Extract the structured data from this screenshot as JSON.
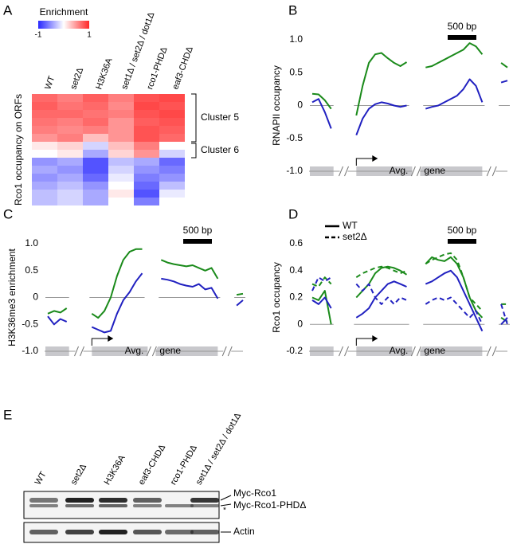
{
  "chart_data": [
    {
      "type": "heatmap",
      "panel": "A",
      "legend_title": "Enrichment",
      "colorbar_ticks": [
        -1,
        1
      ],
      "colorbar_colors": [
        "#2828ff",
        "#ffffff",
        "#ff2828"
      ],
      "ylabel": "Rco1 occupancy on ORFs",
      "columns": [
        "WT",
        "set2Δ",
        "H3K36A",
        "set1Δ / set2Δ / dot1Δ",
        "rco1-PHDΔ",
        "eaf3-CHDΔ"
      ],
      "values": [
        [
          0.7,
          0.6,
          0.75,
          0.6,
          0.8,
          0.85
        ],
        [
          0.75,
          0.65,
          0.7,
          0.55,
          0.85,
          0.8
        ],
        [
          0.7,
          0.7,
          0.65,
          0.6,
          0.8,
          0.85
        ],
        [
          0.65,
          0.6,
          0.7,
          0.5,
          0.75,
          0.8
        ],
        [
          0.6,
          0.55,
          0.6,
          0.5,
          0.8,
          0.75
        ],
        [
          0.5,
          0.6,
          0.3,
          0.5,
          0.8,
          0.7
        ],
        [
          0.1,
          0.2,
          -0.2,
          0.3,
          0.6,
          0.0
        ],
        [
          0.0,
          0.1,
          -0.4,
          0.2,
          0.5,
          -0.2
        ],
        [
          -0.5,
          -0.4,
          -0.8,
          -0.3,
          -0.4,
          -0.7
        ],
        [
          -0.4,
          -0.5,
          -0.8,
          -0.2,
          -0.5,
          -0.6
        ],
        [
          -0.5,
          -0.4,
          -0.7,
          -0.1,
          -0.6,
          -0.5
        ],
        [
          -0.4,
          -0.3,
          -0.5,
          0.0,
          -0.7,
          -0.3
        ],
        [
          -0.3,
          -0.2,
          -0.4,
          0.1,
          -0.8,
          -0.1
        ],
        [
          -0.3,
          -0.2,
          -0.4,
          0.0,
          -0.6,
          0.0
        ]
      ],
      "clusters": [
        {
          "name": "Cluster 5",
          "color": "#1a8a1a"
        },
        {
          "name": "Cluster 6",
          "color": "#2020c0"
        }
      ]
    },
    {
      "type": "line",
      "panel": "B",
      "ylabel": "RNAPII occupancy",
      "ylim": [
        -1,
        1
      ],
      "yticks": [
        {
          "value": 1,
          "label": "1.0"
        },
        0.5,
        0,
        -0.5,
        {
          "value": -1,
          "label": "-1.0"
        }
      ],
      "categories": [
        null,
        null,
        null,
        null,
        null,
        null,
        null,
        null,
        null,
        null,
        null,
        null,
        null,
        null,
        null,
        null,
        null,
        null,
        null,
        null,
        null,
        null,
        null,
        null,
        null,
        null,
        null,
        null,
        null,
        null,
        null,
        null
      ],
      "scale_bar": "500 bp",
      "gene_label": [
        "Avg.",
        "gene"
      ],
      "series": [
        {
          "color": "#1a8a1a",
          "values": [
            0.18,
            0.17,
            0.08,
            -0.05,
            null,
            null,
            null,
            -0.15,
            0.3,
            0.65,
            0.78,
            0.8,
            0.72,
            0.65,
            0.6,
            0.66,
            null,
            null,
            0.58,
            0.6,
            0.65,
            0.7,
            0.75,
            0.8,
            0.85,
            0.95,
            0.9,
            0.78,
            null,
            null,
            0.65,
            0.58
          ]
        },
        {
          "color": "#2020c0",
          "values": [
            0.05,
            0.1,
            -0.1,
            -0.35,
            null,
            null,
            null,
            -0.45,
            -0.2,
            -0.05,
            0.02,
            0.05,
            0.03,
            0.0,
            -0.02,
            0.0,
            null,
            null,
            -0.05,
            -0.02,
            0.0,
            0.05,
            0.1,
            0.15,
            0.25,
            0.4,
            0.3,
            0.05,
            null,
            null,
            0.35,
            0.38
          ]
        }
      ]
    },
    {
      "type": "line",
      "panel": "C",
      "ylabel": "H3K36me3 enrichment",
      "ylim": [
        -1,
        1
      ],
      "yticks": [
        {
          "value": 1,
          "label": "1.0"
        },
        0.5,
        0,
        -0.5,
        {
          "value": -1,
          "label": "-1.0"
        }
      ],
      "categories": [
        null,
        null,
        null,
        null,
        null,
        null,
        null,
        null,
        null,
        null,
        null,
        null,
        null,
        null,
        null,
        null,
        null,
        null,
        null,
        null,
        null,
        null,
        null,
        null,
        null,
        null,
        null,
        null,
        null,
        null,
        null,
        null
      ],
      "scale_bar": "500 bp",
      "gene_label": [
        "Avg.",
        "gene"
      ],
      "series": [
        {
          "color": "#1a8a1a",
          "values": [
            -0.3,
            -0.25,
            -0.28,
            -0.2,
            null,
            null,
            null,
            -0.3,
            -0.38,
            -0.25,
            0.0,
            0.4,
            0.7,
            0.85,
            0.9,
            0.9,
            null,
            null,
            0.7,
            0.65,
            0.62,
            0.6,
            0.58,
            0.6,
            0.55,
            0.5,
            0.55,
            0.35,
            null,
            null,
            0.05,
            0.07
          ]
        },
        {
          "color": "#2020c0",
          "values": [
            -0.35,
            -0.5,
            -0.4,
            -0.45,
            null,
            null,
            null,
            -0.55,
            -0.6,
            -0.65,
            -0.62,
            -0.3,
            -0.05,
            0.1,
            0.3,
            0.45,
            null,
            null,
            0.35,
            0.33,
            0.3,
            0.25,
            0.22,
            0.2,
            0.25,
            0.15,
            0.18,
            -0.02,
            null,
            null,
            -0.15,
            -0.05
          ]
        }
      ]
    },
    {
      "type": "line",
      "panel": "D",
      "ylabel": "Rco1 occupancy",
      "ylim": [
        -0.2,
        0.6
      ],
      "yticks": [
        -0.2,
        0,
        0.2,
        0.4,
        0.6
      ],
      "categories": [
        null,
        null,
        null,
        null,
        null,
        null,
        null,
        null,
        null,
        null,
        null,
        null,
        null,
        null,
        null,
        null,
        null,
        null,
        null,
        null,
        null,
        null,
        null,
        null,
        null,
        null,
        null,
        null,
        null,
        null,
        null,
        null
      ],
      "scale_bar": "500 bp",
      "gene_label": [
        "Avg.",
        "gene"
      ],
      "legend": [
        {
          "label": "WT",
          "dashed": false
        },
        {
          "label": "set2Δ",
          "dashed": true
        }
      ],
      "series": [
        {
          "color": "#1a8a1a",
          "dashed": false,
          "values": [
            0.2,
            0.18,
            0.25,
            0.0,
            null,
            null,
            null,
            0.2,
            0.25,
            0.3,
            0.38,
            0.42,
            0.43,
            0.42,
            0.4,
            0.37,
            null,
            null,
            0.45,
            0.5,
            0.48,
            0.47,
            0.5,
            0.45,
            0.35,
            0.2,
            0.1,
            0.05,
            null,
            null,
            0.05,
            0.02
          ]
        },
        {
          "color": "#1a8a1a",
          "dashed": true,
          "values": [
            0.3,
            0.28,
            0.35,
            0.3,
            null,
            null,
            null,
            0.35,
            0.38,
            0.4,
            0.42,
            0.43,
            0.42,
            0.4,
            0.38,
            0.4,
            null,
            null,
            0.45,
            0.48,
            0.5,
            0.52,
            0.53,
            0.48,
            0.35,
            0.2,
            0.15,
            0.1,
            null,
            null,
            0.15,
            0.15
          ]
        },
        {
          "color": "#2020c0",
          "dashed": false,
          "values": [
            0.18,
            0.15,
            0.2,
            0.12,
            null,
            null,
            null,
            0.05,
            0.08,
            0.12,
            0.2,
            0.25,
            0.3,
            0.32,
            0.3,
            0.28,
            null,
            null,
            0.3,
            0.32,
            0.35,
            0.38,
            0.4,
            0.35,
            0.25,
            0.15,
            0.05,
            -0.05,
            null,
            null,
            0.0,
            0.05
          ]
        },
        {
          "color": "#2020c0",
          "dashed": true,
          "values": [
            0.25,
            0.35,
            0.32,
            0.35,
            null,
            null,
            null,
            0.3,
            0.25,
            0.3,
            0.2,
            0.15,
            0.2,
            0.15,
            0.2,
            0.18,
            null,
            null,
            0.15,
            0.18,
            0.2,
            0.18,
            0.2,
            0.15,
            0.1,
            0.05,
            0.1,
            0.0,
            null,
            null,
            0.15,
            0.0
          ]
        }
      ]
    }
  ],
  "blot": {
    "panel": "E",
    "lanes": [
      "WT",
      "set2Δ",
      "H3K36A",
      "eaf3-CHDΔ",
      "rco1-PHDΔ",
      "set1Δ / set2Δ / dot1Δ"
    ],
    "band_labels": [
      "Myc-Rco1",
      "*",
      "Myc-Rco1-PHDΔ",
      "Actin"
    ]
  }
}
